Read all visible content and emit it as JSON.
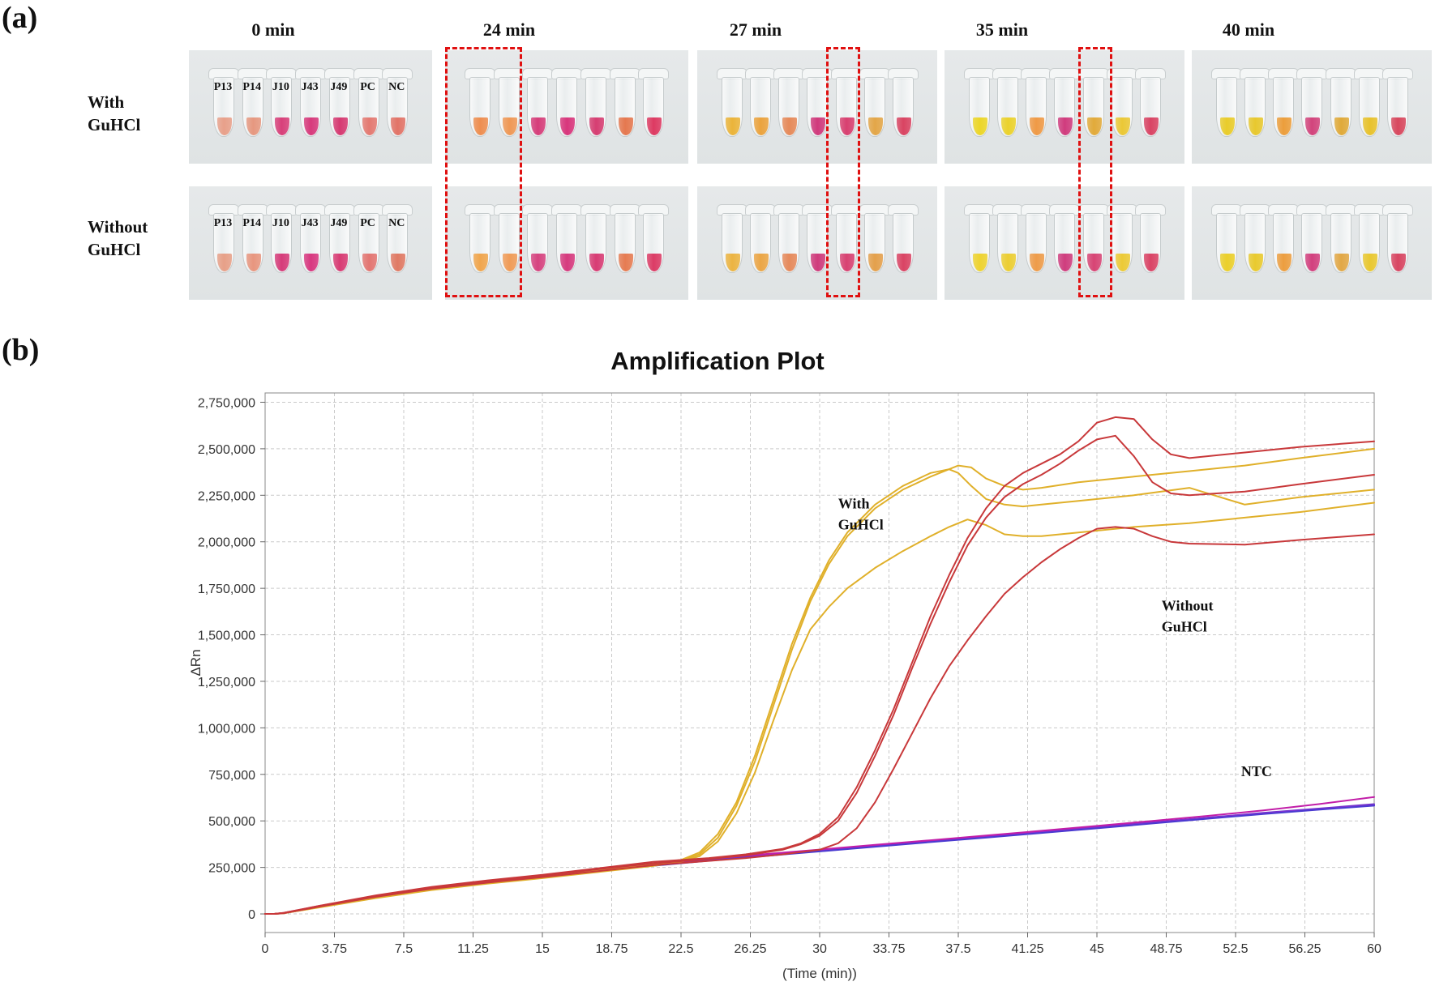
{
  "panel_a": {
    "label": "(a)",
    "times": [
      "0 min",
      "24 min",
      "27 min",
      "35 min",
      "40 min"
    ],
    "rows": [
      {
        "line1": "With",
        "line2": "GuHCl"
      },
      {
        "line1": "Without",
        "line2": "GuHCl"
      }
    ],
    "tube_labels": [
      "P13",
      "P14",
      "J10",
      "J43",
      "J49",
      "PC",
      "NC"
    ],
    "tube_colors": [
      [
        "#e8a08a",
        "#e69880",
        "#d8407a",
        "#d73a7c",
        "#d63a72",
        "#e47a72",
        "#e27468"
      ],
      [
        "#e7a088",
        "#e8967f",
        "#d63c7a",
        "#d83880",
        "#d83c74",
        "#e37672",
        "#e07a64"
      ],
      [
        "#ee8e50",
        "#ef9856",
        "#d63e7a",
        "#d8367c",
        "#d63e72",
        "#e5784f",
        "#dd3a62"
      ],
      [
        "#f0a64e",
        "#f09c58",
        "#d64480",
        "#d63a7e",
        "#d83c74",
        "#e67c52",
        "#dc3c66"
      ],
      [
        "#ebb43a",
        "#eba33e",
        "#e68a5a",
        "#d03a7c",
        "#d84070",
        "#e3a648",
        "#d94462"
      ],
      [
        "#ecb442",
        "#eba646",
        "#e68a5c",
        "#cf3b7c",
        "#d84272",
        "#e4a04c",
        "#da4464"
      ],
      [
        "#ecd628",
        "#ebd22c",
        "#ef9a46",
        "#d03c7e",
        "#e2aa3a",
        "#ebc836",
        "#d94464"
      ],
      [
        "#eed330",
        "#ecce32",
        "#ee9c4a",
        "#cf3d7e",
        "#d74474",
        "#ecca36",
        "#da4466"
      ],
      [
        "#e9cc2a",
        "#e8c82e",
        "#ec9e3c",
        "#d2447c",
        "#e0aa3a",
        "#e8c22c",
        "#d8485e"
      ],
      [
        "#ebcf2a",
        "#e9ca2e",
        "#ec9e40",
        "#d2407e",
        "#e2a846",
        "#e9c830",
        "#d84662"
      ]
    ]
  },
  "panel_b": {
    "label": "(b)"
  },
  "chart_data": {
    "type": "line",
    "title": "Amplification Plot",
    "xlabel": "(Time (min))",
    "ylabel": "ΔRn",
    "xlim": [
      0,
      60
    ],
    "ylim": [
      -100000,
      2800000
    ],
    "xticks": [
      0,
      3.75,
      7.5,
      11.25,
      15,
      18.75,
      22.5,
      26.25,
      30,
      33.75,
      37.5,
      41.25,
      45,
      48.75,
      52.5,
      56.25,
      60
    ],
    "xtick_labels": [
      "0",
      "3.75",
      "7.5",
      "11.25",
      "15",
      "18.75",
      "22.5",
      "26.25",
      "30",
      "33.75",
      "37.5",
      "41.25",
      "45",
      "48.75",
      "52.5",
      "56.25",
      "60"
    ],
    "yticks": [
      0,
      250000,
      500000,
      750000,
      1000000,
      1250000,
      1500000,
      1750000,
      2000000,
      2250000,
      2500000,
      2750000
    ],
    "ytick_labels": [
      "0",
      "250,000",
      "500,000",
      "750,000",
      "1,000,000",
      "1,250,000",
      "1,500,000",
      "1,750,000",
      "2,000,000",
      "2,250,000",
      "2,500,000",
      "2,750,000"
    ],
    "grid": true,
    "annotations": [
      {
        "text": [
          "With",
          "GuHCl"
        ],
        "x": 31,
        "y": 2180000
      },
      {
        "text": [
          "Without",
          "GuHCl"
        ],
        "x": 48.5,
        "y": 1630000
      },
      {
        "text": [
          "NTC"
        ],
        "x": 52.8,
        "y": 740000
      }
    ],
    "series": [
      {
        "name": "With GuHCl 1",
        "color": "#e0b02a",
        "x": [
          0,
          0.5,
          1,
          3,
          6,
          9,
          12,
          15,
          18,
          21,
          22.5,
          23.5,
          24.5,
          25.5,
          26.5,
          27.5,
          28.5,
          29.5,
          30.5,
          31.5,
          33,
          34.5,
          36,
          37,
          37.5,
          38.2,
          39,
          40,
          41,
          42,
          44,
          47,
          50,
          53,
          56,
          60
        ],
        "y": [
          0,
          0,
          5000,
          40000,
          90000,
          135000,
          170000,
          200000,
          235000,
          270000,
          290000,
          330000,
          430000,
          600000,
          850000,
          1150000,
          1450000,
          1700000,
          1900000,
          2050000,
          2200000,
          2300000,
          2370000,
          2390000,
          2370000,
          2300000,
          2230000,
          2200000,
          2190000,
          2200000,
          2220000,
          2250000,
          2290000,
          2200000,
          2240000,
          2280000
        ]
      },
      {
        "name": "With GuHCl 2",
        "color": "#e0b02a",
        "x": [
          0,
          0.5,
          1,
          3,
          6,
          9,
          12,
          15,
          18,
          21,
          22.5,
          23.5,
          24.5,
          25.5,
          26.5,
          27.5,
          28.5,
          29.5,
          30.5,
          31.5,
          33,
          34.5,
          36,
          37,
          37.5,
          38.2,
          39,
          40,
          41,
          42,
          44,
          47,
          50,
          53,
          56,
          60
        ],
        "y": [
          0,
          0,
          3000,
          38000,
          88000,
          130000,
          165000,
          195000,
          228000,
          262000,
          285000,
          320000,
          410000,
          580000,
          820000,
          1120000,
          1420000,
          1680000,
          1880000,
          2030000,
          2180000,
          2280000,
          2350000,
          2390000,
          2410000,
          2400000,
          2340000,
          2300000,
          2280000,
          2290000,
          2320000,
          2350000,
          2380000,
          2410000,
          2450000,
          2500000
        ]
      },
      {
        "name": "With GuHCl 3",
        "color": "#e0b02a",
        "x": [
          0,
          0.5,
          1,
          3,
          6,
          9,
          12,
          15,
          18,
          21,
          22.5,
          23.5,
          24.5,
          25.5,
          26.5,
          27.5,
          28.5,
          29.5,
          30.5,
          31.5,
          33,
          34.5,
          36,
          37,
          38,
          39,
          40,
          41,
          42,
          44,
          47,
          50,
          53,
          56,
          60
        ],
        "y": [
          0,
          0,
          4000,
          36000,
          85000,
          128000,
          162000,
          192000,
          225000,
          258000,
          280000,
          310000,
          390000,
          540000,
          760000,
          1040000,
          1310000,
          1530000,
          1650000,
          1750000,
          1860000,
          1950000,
          2030000,
          2080000,
          2120000,
          2090000,
          2040000,
          2030000,
          2030000,
          2050000,
          2080000,
          2100000,
          2130000,
          2160000,
          2210000
        ]
      },
      {
        "name": "Without GuHCl 1",
        "color": "#c8383a",
        "x": [
          0,
          0.5,
          1,
          3,
          6,
          9,
          12,
          15,
          18,
          21,
          24,
          26,
          28,
          29,
          30,
          31,
          32,
          33,
          34,
          35,
          36,
          37,
          38,
          39,
          40,
          41,
          42,
          43,
          44,
          45,
          46,
          47,
          48,
          49,
          50,
          53,
          56,
          60
        ],
        "y": [
          0,
          0,
          6000,
          45000,
          100000,
          145000,
          180000,
          210000,
          245000,
          280000,
          300000,
          320000,
          350000,
          380000,
          430000,
          520000,
          680000,
          880000,
          1100000,
          1350000,
          1600000,
          1820000,
          2020000,
          2180000,
          2300000,
          2370000,
          2420000,
          2470000,
          2540000,
          2640000,
          2670000,
          2660000,
          2550000,
          2470000,
          2450000,
          2480000,
          2510000,
          2540000
        ]
      },
      {
        "name": "Without GuHCl 2",
        "color": "#c8383a",
        "x": [
          0,
          0.5,
          1,
          3,
          6,
          9,
          12,
          15,
          18,
          21,
          24,
          26,
          28,
          29,
          30,
          31,
          32,
          33,
          34,
          35,
          36,
          37,
          38,
          39,
          40,
          41,
          42,
          43,
          44,
          45,
          46,
          47,
          48,
          49,
          50,
          53,
          56,
          60
        ],
        "y": [
          0,
          0,
          5000,
          42000,
          96000,
          140000,
          175000,
          205000,
          240000,
          272000,
          295000,
          315000,
          345000,
          375000,
          420000,
          500000,
          650000,
          850000,
          1070000,
          1320000,
          1560000,
          1780000,
          1980000,
          2130000,
          2240000,
          2310000,
          2360000,
          2420000,
          2490000,
          2550000,
          2570000,
          2460000,
          2320000,
          2260000,
          2250000,
          2270000,
          2310000,
          2360000
        ]
      },
      {
        "name": "Without GuHCl 3",
        "color": "#c8383a",
        "x": [
          0,
          0.5,
          1,
          3,
          6,
          9,
          12,
          15,
          18,
          21,
          24,
          26,
          28,
          30,
          31,
          32,
          33,
          34,
          35,
          36,
          37,
          38,
          39,
          40,
          41,
          42,
          43,
          44,
          45,
          46,
          47,
          48,
          49,
          50,
          53,
          56,
          60
        ],
        "y": [
          0,
          0,
          4000,
          40000,
          92000,
          135000,
          168000,
          198000,
          230000,
          262000,
          285000,
          300000,
          320000,
          345000,
          380000,
          460000,
          600000,
          780000,
          970000,
          1160000,
          1330000,
          1470000,
          1600000,
          1720000,
          1810000,
          1890000,
          1960000,
          2020000,
          2070000,
          2080000,
          2070000,
          2030000,
          2000000,
          1990000,
          1985000,
          2010000,
          2040000
        ]
      },
      {
        "name": "NTC 1",
        "color": "#6a34c8",
        "x": [
          0,
          0.5,
          1,
          3,
          6,
          9,
          12,
          15,
          18,
          21,
          24,
          27,
          30,
          33,
          36,
          39,
          42,
          45,
          48,
          51,
          54,
          57,
          60
        ],
        "y": [
          0,
          0,
          5000,
          42000,
          95000,
          138000,
          172000,
          203000,
          234000,
          265000,
          292000,
          318000,
          342000,
          367000,
          391000,
          416000,
          441000,
          466000,
          492000,
          518000,
          543000,
          566000,
          590000
        ]
      },
      {
        "name": "NTC 2",
        "color": "#8c2fd6",
        "x": [
          0,
          0.5,
          1,
          3,
          6,
          9,
          12,
          15,
          18,
          21,
          24,
          27,
          30,
          33,
          36,
          39,
          42,
          45,
          48,
          51,
          54,
          57,
          60
        ],
        "y": [
          0,
          0,
          4000,
          40000,
          92000,
          136000,
          170000,
          200000,
          231000,
          262000,
          289000,
          314000,
          340000,
          364000,
          389000,
          413000,
          439000,
          463000,
          489000,
          515000,
          540000,
          563000,
          585000
        ]
      },
      {
        "name": "NTC 3",
        "color": "#c21ea8",
        "x": [
          0,
          0.5,
          1,
          3,
          6,
          9,
          12,
          15,
          18,
          21,
          24,
          27,
          30,
          33,
          36,
          39,
          42,
          45,
          48,
          51,
          54,
          57,
          60
        ],
        "y": [
          0,
          0,
          6000,
          44000,
          97000,
          141000,
          175000,
          207000,
          238000,
          268000,
          296000,
          321000,
          346000,
          371000,
          396000,
          421000,
          447000,
          473000,
          500000,
          527000,
          556000,
          590000,
          628000
        ]
      },
      {
        "name": "NTC 4",
        "color": "#4a3ad0",
        "x": [
          0,
          0.5,
          1,
          3,
          6,
          9,
          12,
          15,
          18,
          21,
          24,
          27,
          30,
          33,
          36,
          39,
          42,
          45,
          48,
          51,
          54,
          57,
          60
        ],
        "y": [
          0,
          0,
          3000,
          38000,
          90000,
          133000,
          167000,
          197000,
          228000,
          259000,
          286000,
          311000,
          336000,
          361000,
          386000,
          410000,
          435000,
          460000,
          486000,
          512000,
          537000,
          560000,
          582000
        ]
      }
    ]
  }
}
